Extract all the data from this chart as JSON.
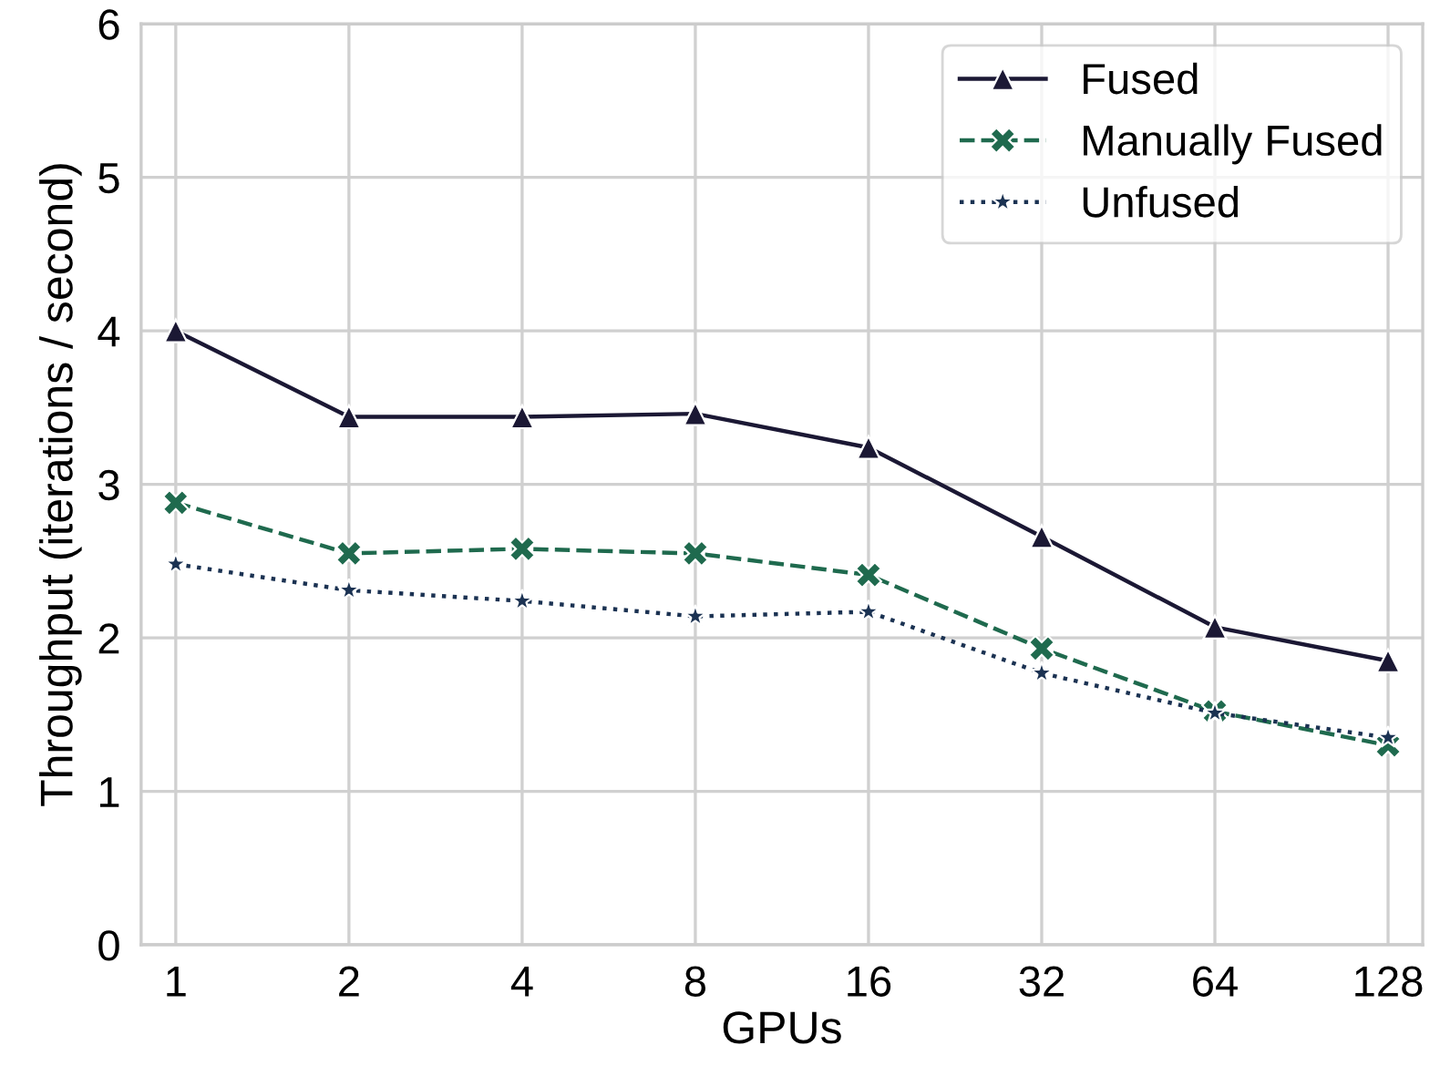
{
  "chart_data": {
    "type": "line",
    "xlabel": "GPUs",
    "ylabel": "Throughput (iterations / second)",
    "categories": [
      "1",
      "2",
      "4",
      "8",
      "16",
      "32",
      "64",
      "128"
    ],
    "series": [
      {
        "name": "Fused",
        "color": "#1b1834",
        "marker": "triangle",
        "line_style": "solid",
        "values": [
          4.0,
          3.44,
          3.44,
          3.46,
          3.24,
          2.66,
          2.07,
          1.85
        ]
      },
      {
        "name": "Manually Fused",
        "color": "#1f6a4e",
        "marker": "cross",
        "line_style": "dashed",
        "values": [
          2.88,
          2.55,
          2.58,
          2.55,
          2.41,
          1.93,
          1.52,
          1.3
        ]
      },
      {
        "name": "Unfused",
        "color": "#1b3252",
        "marker": "star",
        "line_style": "dotted",
        "values": [
          2.48,
          2.31,
          2.24,
          2.14,
          2.17,
          1.77,
          1.51,
          1.35
        ]
      }
    ],
    "ylim": [
      0,
      6
    ],
    "yticks": [
      0,
      1,
      2,
      3,
      4,
      5,
      6
    ],
    "grid": true,
    "legend": "top right"
  }
}
